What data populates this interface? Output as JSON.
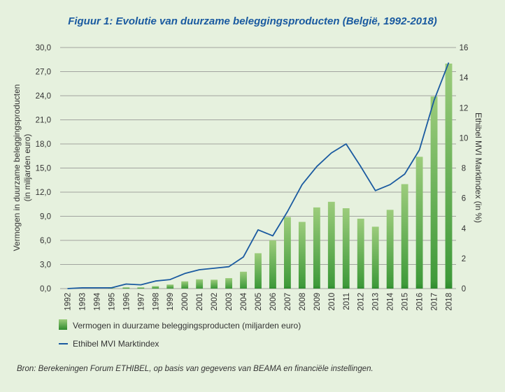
{
  "title": "Figuur 1: Evolutie van duurzame beleggingsproducten (België, 1992-2018)",
  "source": "Bron: Berekeningen Forum ETHIBEL, op basis van gegevens van BEAMA en financiële instellingen.",
  "colors": {
    "background": "#e6f1de",
    "title": "#1a5aa0",
    "bar_dark": "#2e8b2e",
    "bar_light": "#9ccc7c",
    "line": "#1a5aa0",
    "grid": "#8a8a8a"
  },
  "chart_data": {
    "type": "bar",
    "categories": [
      "1992",
      "1993",
      "1994",
      "1995",
      "1996",
      "1997",
      "1998",
      "1999",
      "2000",
      "2001",
      "2002",
      "2003",
      "2004",
      "2005",
      "2006",
      "2007",
      "2008",
      "2009",
      "2010",
      "2011",
      "2012",
      "2013",
      "2014",
      "2015",
      "2016",
      "2017",
      "2018"
    ],
    "y_left": {
      "label_line1": "Vermogen in duurzame beleggingsproducten",
      "label_line2": "(in miljarden euro)",
      "range": [
        0,
        30
      ],
      "ticks": [
        "0,0",
        "3,0",
        "6,0",
        "9,0",
        "12,0",
        "15,0",
        "18,0",
        "21,0",
        "24,0",
        "27,0",
        "30,0"
      ]
    },
    "y_right": {
      "label": "Ethibel MVI Marktindex (in %)",
      "range": [
        0,
        16
      ],
      "ticks": [
        "0",
        "2",
        "4",
        "6",
        "8",
        "10",
        "12",
        "14",
        "16"
      ]
    },
    "grid": true,
    "legend_position": "bottom-left",
    "series": [
      {
        "name": "Vermogen in duurzame beleggingsproducten (miljarden euro)",
        "kind": "bar",
        "axis": "left",
        "values": [
          0,
          0,
          0,
          0.05,
          0.15,
          0.15,
          0.3,
          0.5,
          0.9,
          1.15,
          1.1,
          1.3,
          2.1,
          4.4,
          6.0,
          8.9,
          8.3,
          10.1,
          10.8,
          10.0,
          8.7,
          7.7,
          9.8,
          13.0,
          16.4,
          23.9,
          28.0
        ]
      },
      {
        "name": "Ethibel MVI Marktindex",
        "kind": "line",
        "axis": "right",
        "values": [
          0,
          0.05,
          0.05,
          0.05,
          0.3,
          0.25,
          0.5,
          0.6,
          1.0,
          1.25,
          1.35,
          1.45,
          2.1,
          3.9,
          3.5,
          5.1,
          6.9,
          8.1,
          9.0,
          9.6,
          8.1,
          6.5,
          6.9,
          7.6,
          9.2,
          12.5,
          15.0
        ]
      }
    ]
  }
}
